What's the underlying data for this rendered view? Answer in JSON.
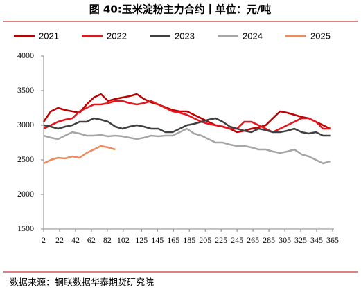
{
  "chart_data": {
    "type": "line",
    "title": "图 40:玉米淀粉主力合约丨单位：元/吨",
    "source": "数据来源：钢联数据华泰期货研究院",
    "x": [
      2,
      11,
      20,
      29,
      38,
      47,
      56,
      65,
      74,
      83,
      92,
      101,
      110,
      119,
      128,
      137,
      146,
      155,
      164,
      173,
      182,
      191,
      200,
      209,
      218,
      227,
      236,
      245,
      254,
      263,
      272,
      281,
      290,
      299,
      308,
      317,
      326,
      335,
      344,
      353,
      362
    ],
    "series": [
      {
        "name": "2021",
        "color": "#c00000",
        "values": [
          3050,
          3200,
          3250,
          3220,
          3200,
          3180,
          3300,
          3400,
          3450,
          3350,
          3380,
          3400,
          3420,
          3450,
          3380,
          3330,
          3300,
          3260,
          3220,
          3200,
          3200,
          3150,
          3100,
          3050,
          3000,
          2980,
          2950,
          2900,
          2920,
          2950,
          2970,
          3000,
          3100,
          3200,
          3180,
          3150,
          3120,
          3100,
          3050,
          3000,
          2950
        ]
      },
      {
        "name": "2022",
        "color": "#e8141c",
        "values": [
          2950,
          3000,
          3050,
          3080,
          3100,
          3200,
          3250,
          3300,
          3300,
          3320,
          3350,
          3350,
          3320,
          3300,
          3320,
          3350,
          3300,
          3250,
          3200,
          3180,
          3150,
          3100,
          3050,
          3020,
          3000,
          2980,
          2950,
          2950,
          3050,
          3050,
          3000,
          2950,
          2900,
          2950,
          3000,
          3050,
          3100,
          3100,
          3050,
          2950,
          2950
        ]
      },
      {
        "name": "2023",
        "color": "#404040",
        "values": [
          3000,
          2980,
          2950,
          2980,
          3000,
          3050,
          3050,
          3100,
          3080,
          3050,
          2980,
          2950,
          2980,
          3000,
          2980,
          2950,
          2950,
          2900,
          2900,
          2950,
          3000,
          3020,
          3050,
          3080,
          3100,
          3050,
          2980,
          2950,
          2920,
          2900,
          2950,
          2930,
          2900,
          2900,
          2920,
          2950,
          2900,
          2880,
          2900,
          2850,
          2850
        ]
      },
      {
        "name": "2024",
        "color": "#a6a6a6",
        "values": [
          2850,
          2820,
          2800,
          2850,
          2900,
          2880,
          2850,
          2850,
          2860,
          2840,
          2850,
          2840,
          2820,
          2800,
          2820,
          2850,
          2840,
          2850,
          2850,
          2900,
          2950,
          2880,
          2850,
          2800,
          2750,
          2750,
          2720,
          2700,
          2700,
          2680,
          2650,
          2650,
          2620,
          2600,
          2620,
          2650,
          2580,
          2550,
          2500,
          2450,
          2480
        ]
      },
      {
        "name": "2025",
        "color": "#f08a5d",
        "values": [
          2450,
          2500,
          2530,
          2520,
          2550,
          2530,
          2600,
          2650,
          2700,
          2680,
          2650,
          null,
          null,
          null,
          null,
          null,
          null,
          null,
          null,
          null,
          null,
          null,
          null,
          null,
          null,
          null,
          null,
          null,
          null,
          null,
          null,
          null,
          null,
          null,
          null,
          null,
          null,
          null,
          null,
          null,
          null
        ]
      }
    ],
    "xlim": [
      2,
      365
    ],
    "xticks": [
      2,
      22,
      42,
      62,
      82,
      102,
      125,
      145,
      165,
      185,
      205,
      225,
      245,
      265,
      285,
      305,
      325,
      345,
      365
    ],
    "ylim": [
      1500,
      4000
    ],
    "yticks": [
      1500,
      2000,
      2500,
      3000,
      3500,
      4000
    ],
    "legend": "top"
  }
}
